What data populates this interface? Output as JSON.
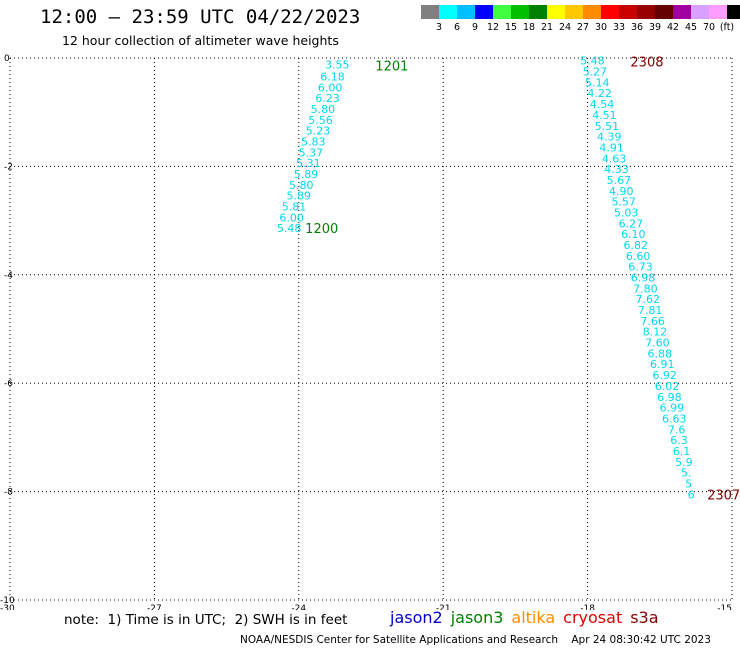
{
  "header": {
    "title": "12:00 — 23:59 UTC 04/22/2023",
    "subtitle": "12 hour collection of altimeter wave heights"
  },
  "colorbar": {
    "colors": [
      "#808080",
      "#00ffff",
      "#00bfff",
      "#0000ff",
      "#40ff40",
      "#00c000",
      "#008000",
      "#ffff00",
      "#ffc800",
      "#ff8c00",
      "#ff0000",
      "#c80000",
      "#960000",
      "#640000",
      "#a000a0",
      "#d8a0ff",
      "#ff9cff",
      "#000000"
    ],
    "labels": [
      "3",
      "6",
      "9",
      "12",
      "15",
      "18",
      "21",
      "24",
      "27",
      "30",
      "33",
      "36",
      "39",
      "42",
      "45",
      "70",
      "(ft)"
    ]
  },
  "chart_data": {
    "type": "scatter",
    "xlim": [
      -30,
      -15
    ],
    "ylim": [
      -10,
      0
    ],
    "x_ticks": [
      "-30",
      "-27",
      "-24",
      "-21",
      "-18",
      "-15"
    ],
    "y_ticks": [
      "0",
      "-2",
      "-4",
      "-6",
      "-8",
      "-10"
    ],
    "grid": true,
    "value_color": "#00d8ec",
    "tracks": [
      {
        "name": "1200 / 1201",
        "start_label": "1201",
        "end_label": "1200",
        "label_color": "#008000",
        "points": [
          {
            "x": -23.2,
            "y": -0.12,
            "v": "3.55"
          },
          {
            "x": -23.3,
            "y": -0.34,
            "v": "6.18"
          },
          {
            "x": -23.35,
            "y": -0.54,
            "v": "6.00"
          },
          {
            "x": -23.4,
            "y": -0.74,
            "v": "6.23"
          },
          {
            "x": -23.5,
            "y": -0.94,
            "v": "5.80"
          },
          {
            "x": -23.55,
            "y": -1.14,
            "v": "5.56"
          },
          {
            "x": -23.6,
            "y": -1.34,
            "v": "5.23"
          },
          {
            "x": -23.7,
            "y": -1.54,
            "v": "5.83"
          },
          {
            "x": -23.75,
            "y": -1.74,
            "v": "5.37"
          },
          {
            "x": -23.8,
            "y": -1.94,
            "v": "5.31"
          },
          {
            "x": -23.85,
            "y": -2.14,
            "v": "5.89"
          },
          {
            "x": -23.95,
            "y": -2.34,
            "v": "5.80"
          },
          {
            "x": -24.0,
            "y": -2.54,
            "v": "5.89"
          },
          {
            "x": -24.1,
            "y": -2.74,
            "v": "5.81"
          },
          {
            "x": -24.15,
            "y": -2.94,
            "v": "6.00"
          },
          {
            "x": -24.2,
            "y": -3.14,
            "v": "5.48"
          }
        ]
      },
      {
        "name": "2307 / 2308",
        "start_label": "2308",
        "end_label": "2307",
        "label_color": "#800000",
        "points": [
          {
            "x": -17.9,
            "y": -0.05,
            "v": "5.48"
          },
          {
            "x": -17.85,
            "y": -0.25,
            "v": "5.27"
          },
          {
            "x": -17.8,
            "y": -0.45,
            "v": "5.14"
          },
          {
            "x": -17.75,
            "y": -0.65,
            "v": "4.22"
          },
          {
            "x": -17.7,
            "y": -0.85,
            "v": "4.54"
          },
          {
            "x": -17.65,
            "y": -1.05,
            "v": "4.51"
          },
          {
            "x": -17.6,
            "y": -1.25,
            "v": "5.51"
          },
          {
            "x": -17.55,
            "y": -1.45,
            "v": "4.39"
          },
          {
            "x": -17.5,
            "y": -1.65,
            "v": "4.91"
          },
          {
            "x": -17.45,
            "y": -1.85,
            "v": "4.63"
          },
          {
            "x": -17.4,
            "y": -2.05,
            "v": "4.33"
          },
          {
            "x": -17.35,
            "y": -2.25,
            "v": "5.67"
          },
          {
            "x": -17.3,
            "y": -2.45,
            "v": "4.90"
          },
          {
            "x": -17.25,
            "y": -2.65,
            "v": "5.57"
          },
          {
            "x": -17.2,
            "y": -2.85,
            "v": "5.03"
          },
          {
            "x": -17.1,
            "y": -3.05,
            "v": "6.27"
          },
          {
            "x": -17.05,
            "y": -3.25,
            "v": "6.10"
          },
          {
            "x": -17.0,
            "y": -3.45,
            "v": "6.82"
          },
          {
            "x": -16.95,
            "y": -3.65,
            "v": "6.60"
          },
          {
            "x": -16.9,
            "y": -3.85,
            "v": "6.73"
          },
          {
            "x": -16.85,
            "y": -4.05,
            "v": "6.98"
          },
          {
            "x": -16.8,
            "y": -4.25,
            "v": "7.80"
          },
          {
            "x": -16.75,
            "y": -4.45,
            "v": "7.62"
          },
          {
            "x": -16.7,
            "y": -4.65,
            "v": "7.81"
          },
          {
            "x": -16.65,
            "y": -4.85,
            "v": "7.66"
          },
          {
            "x": -16.6,
            "y": -5.05,
            "v": "8.12"
          },
          {
            "x": -16.55,
            "y": -5.25,
            "v": "7.60"
          },
          {
            "x": -16.5,
            "y": -5.45,
            "v": "6.88"
          },
          {
            "x": -16.45,
            "y": -5.65,
            "v": "6.91"
          },
          {
            "x": -16.4,
            "y": -5.85,
            "v": "6.92"
          },
          {
            "x": -16.35,
            "y": -6.05,
            "v": "6.02"
          },
          {
            "x": -16.3,
            "y": -6.25,
            "v": "6.98"
          },
          {
            "x": -16.25,
            "y": -6.45,
            "v": "6.99"
          },
          {
            "x": -16.2,
            "y": -6.65,
            "v": "6.63"
          },
          {
            "x": -16.15,
            "y": -6.85,
            "v": "7.6"
          },
          {
            "x": -16.1,
            "y": -7.05,
            "v": "6.3"
          },
          {
            "x": -16.05,
            "y": -7.25,
            "v": "6.1"
          },
          {
            "x": -16.0,
            "y": -7.45,
            "v": "5.9"
          },
          {
            "x": -15.95,
            "y": -7.65,
            "v": "5."
          },
          {
            "x": -15.9,
            "y": -7.85,
            "v": "5"
          },
          {
            "x": -15.85,
            "y": -8.05,
            "v": "6"
          }
        ]
      }
    ]
  },
  "footer": {
    "note": "note:  1) Time is in UTC;  2) SWH is in feet",
    "satellites": [
      {
        "name": "jason2",
        "color": "#0000cc"
      },
      {
        "name": "jason3",
        "color": "#008000"
      },
      {
        "name": "altika",
        "color": "#ff8c00"
      },
      {
        "name": "cryosat",
        "color": "#e00000"
      },
      {
        "name": "s3a",
        "color": "#800000"
      }
    ],
    "credit": "NOAA/NESDIS Center for Satellite Applications and Research    Apr 24 08:30:42 UTC 2023"
  }
}
